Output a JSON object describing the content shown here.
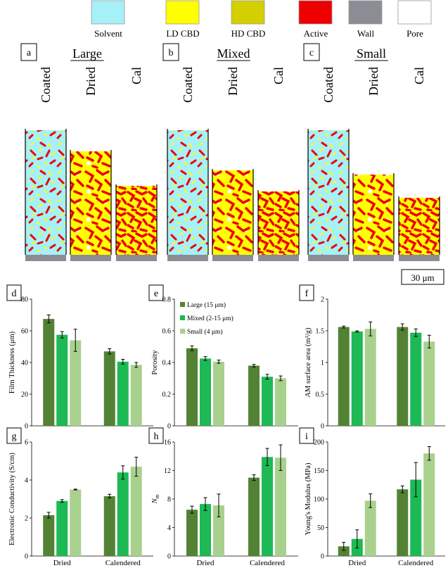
{
  "legend": [
    {
      "label": "Solvent",
      "color": "#a6f0f7"
    },
    {
      "label": "LD CBD",
      "color": "#ffff00"
    },
    {
      "label": "HD CBD",
      "color": "#d4cf00"
    },
    {
      "label": "Active",
      "color": "#ee0000"
    },
    {
      "label": "Wall",
      "color": "#8c8c94"
    },
    {
      "label": "Pore",
      "color": "#ffffff"
    }
  ],
  "top_panels": [
    {
      "letter": "a",
      "title": "Large",
      "columns": [
        "Coated",
        "Dried",
        "Cal"
      ]
    },
    {
      "letter": "b",
      "title": "Mixed",
      "columns": [
        "Coated",
        "Dried",
        "Cal"
      ]
    },
    {
      "letter": "c",
      "title": "Small",
      "columns": [
        "Coated",
        "Dried",
        "Cal"
      ]
    }
  ],
  "scale_bar": "30 μm",
  "series_colors": [
    "#548235",
    "#1db954",
    "#a9d18e"
  ],
  "chart_data": [
    {
      "id": "d",
      "type": "bar",
      "categories": [
        "Dried",
        "Calendered"
      ],
      "series": [
        {
          "name": "Large (15 μm)",
          "values": [
            67.5,
            47
          ],
          "errors": [
            2.5,
            1.7
          ]
        },
        {
          "name": "Mixed (2-15 μm)",
          "values": [
            57.5,
            40.5
          ],
          "errors": [
            2,
            1.5
          ]
        },
        {
          "name": "Small (4 μm)",
          "values": [
            54,
            38.5
          ],
          "errors": [
            7,
            1.5
          ]
        }
      ],
      "ylabel": "Film Thickness (μm)",
      "ylim": [
        0,
        80
      ],
      "yticks": [
        0,
        20,
        40,
        60,
        80
      ],
      "show_legend": false,
      "show_xlabels": false
    },
    {
      "id": "e",
      "type": "bar",
      "categories": [
        "Dried",
        "Calendered"
      ],
      "series": [
        {
          "name": "Large (15 μm)",
          "values": [
            0.49,
            0.38
          ],
          "errors": [
            0.015,
            0.008
          ]
        },
        {
          "name": "Mixed (2-15 μm)",
          "values": [
            0.425,
            0.31
          ],
          "errors": [
            0.012,
            0.015
          ]
        },
        {
          "name": "Small (4 μm)",
          "values": [
            0.405,
            0.3
          ],
          "errors": [
            0.01,
            0.015
          ]
        }
      ],
      "ylabel": "Porosity",
      "ylim": [
        0,
        0.8
      ],
      "yticks": [
        0,
        0.2,
        0.4,
        0.6,
        0.8
      ],
      "show_legend": true,
      "show_xlabels": false
    },
    {
      "id": "f",
      "type": "bar",
      "categories": [
        "Dried",
        "Calendered"
      ],
      "series": [
        {
          "name": "Large (15 μm)",
          "values": [
            1.56,
            1.56
          ],
          "errors": [
            0.015,
            0.05
          ]
        },
        {
          "name": "Mixed (2-15 μm)",
          "values": [
            1.49,
            1.47
          ],
          "errors": [
            0.01,
            0.06
          ]
        },
        {
          "name": "Small (4 μm)",
          "values": [
            1.53,
            1.33
          ],
          "errors": [
            0.11,
            0.1
          ]
        }
      ],
      "ylabel": "AM surface area (m²/g)",
      "ylim": [
        0,
        2
      ],
      "yticks": [
        0,
        0.5,
        1,
        1.5,
        2
      ],
      "show_legend": false,
      "show_xlabels": false
    },
    {
      "id": "g",
      "type": "bar",
      "categories": [
        "Dried",
        "Calendered"
      ],
      "series": [
        {
          "name": "Large (15 μm)",
          "values": [
            2.15,
            3.15
          ],
          "errors": [
            0.15,
            0.1
          ]
        },
        {
          "name": "Mixed (2-15 μm)",
          "values": [
            2.9,
            4.4
          ],
          "errors": [
            0.07,
            0.35
          ]
        },
        {
          "name": "Small (4 μm)",
          "values": [
            3.5,
            4.7
          ],
          "errors": [
            0.02,
            0.5
          ]
        }
      ],
      "ylabel": "Electronic Conductivity (S/cm)",
      "ylim": [
        0,
        6
      ],
      "yticks": [
        0,
        2,
        4,
        6
      ],
      "show_legend": false,
      "show_xlabels": true
    },
    {
      "id": "h",
      "type": "bar",
      "categories": [
        "Dried",
        "Calendered"
      ],
      "series": [
        {
          "name": "Large (15 μm)",
          "values": [
            6.5,
            11
          ],
          "errors": [
            0.5,
            0.4
          ]
        },
        {
          "name": "Mixed (2-15 μm)",
          "values": [
            7.3,
            13.9
          ],
          "errors": [
            0.9,
            1.2
          ]
        },
        {
          "name": "Small (4 μm)",
          "values": [
            7.1,
            13.8
          ],
          "errors": [
            1.6,
            1.8
          ]
        }
      ],
      "ylabel": "N_m",
      "ylim": [
        0,
        16
      ],
      "yticks": [
        0,
        4,
        8,
        12,
        16
      ],
      "show_legend": false,
      "show_xlabels": true
    },
    {
      "id": "i",
      "type": "bar",
      "categories": [
        "Dried",
        "Calendered"
      ],
      "series": [
        {
          "name": "Large (15 μm)",
          "values": [
            17,
            117
          ],
          "errors": [
            7,
            6
          ]
        },
        {
          "name": "Mixed (2-15 μm)",
          "values": [
            30,
            134
          ],
          "errors": [
            16,
            30
          ]
        },
        {
          "name": "Small (4 μm)",
          "values": [
            97,
            180
          ],
          "errors": [
            12,
            12
          ]
        }
      ],
      "ylabel": "Young's Modulus (MPa)",
      "ylim": [
        0,
        200
      ],
      "yticks": [
        0,
        50,
        100,
        150,
        200
      ],
      "show_legend": false,
      "show_xlabels": true
    }
  ]
}
